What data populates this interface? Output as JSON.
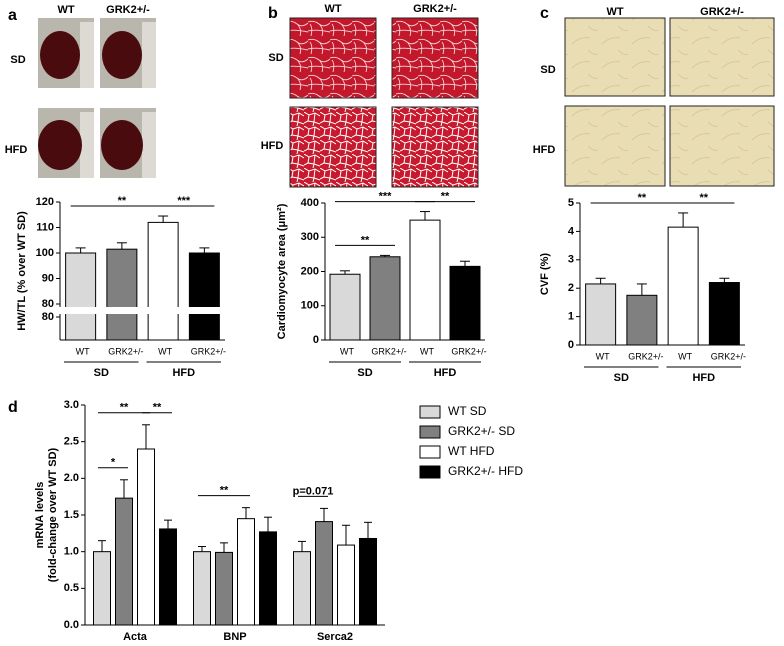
{
  "chart_data": [
    {
      "type": "bar",
      "label": "a",
      "column_labels": [
        "WT",
        "GRK2+/-"
      ],
      "row_labels": [
        "SD",
        "HFD"
      ],
      "categories": [
        "WT",
        "GRK2+/-",
        "WT",
        "GRK2+/-"
      ],
      "groups": [
        "SD",
        "HFD"
      ],
      "values": [
        100,
        101.5,
        112,
        100
      ],
      "errors": [
        2,
        2.5,
        2.5,
        2
      ],
      "colors": [
        "#d9d9d9",
        "#808080",
        "#ffffff",
        "#000000"
      ],
      "ylabel": "HW/TL (% over WT SD)",
      "ylim": [
        80,
        120
      ],
      "yticks": [
        80,
        90,
        100,
        110,
        120
      ],
      "break_tick": 80,
      "annotations": [
        {
          "text": "**",
          "from": 0,
          "to": 2
        },
        {
          "text": "***",
          "from": 2,
          "to": 3
        }
      ]
    },
    {
      "type": "bar",
      "label": "b",
      "column_labels": [
        "WT",
        "GRK2+/-"
      ],
      "row_labels": [
        "SD",
        "HFD"
      ],
      "categories": [
        "WT",
        "GRK2+/-",
        "WT",
        "GRK2+/-"
      ],
      "groups": [
        "SD",
        "HFD"
      ],
      "values": [
        192,
        243,
        350,
        215
      ],
      "errors": [
        10,
        4,
        25,
        15
      ],
      "colors": [
        "#d9d9d9",
        "#808080",
        "#ffffff",
        "#000000"
      ],
      "ylabel": "Cardiomyocyte area (μm²)",
      "ylim": [
        0,
        400
      ],
      "yticks": [
        0,
        100,
        200,
        300,
        400
      ],
      "annotations": [
        {
          "text": "**",
          "from": 0,
          "to": 1
        },
        {
          "text": "***",
          "from": 0,
          "to": 2
        },
        {
          "text": "**",
          "from": 2,
          "to": 3
        }
      ]
    },
    {
      "type": "bar",
      "label": "c",
      "column_labels": [
        "WT",
        "GRK2+/-"
      ],
      "row_labels": [
        "SD",
        "HFD"
      ],
      "categories": [
        "WT",
        "GRK2+/-",
        "WT",
        "GRK2+/-"
      ],
      "groups": [
        "SD",
        "HFD"
      ],
      "values": [
        2.15,
        1.75,
        4.15,
        2.2
      ],
      "errors": [
        0.2,
        0.4,
        0.5,
        0.15
      ],
      "colors": [
        "#d9d9d9",
        "#808080",
        "#ffffff",
        "#000000"
      ],
      "ylabel": "CVF (%)",
      "ylim": [
        0,
        5
      ],
      "yticks": [
        0,
        1,
        2,
        3,
        4,
        5
      ],
      "annotations": [
        {
          "text": "**",
          "from": 0,
          "to": 2
        },
        {
          "text": "**",
          "from": 2,
          "to": 3
        }
      ]
    },
    {
      "type": "grouped_bar",
      "label": "d",
      "categories": [
        "Acta",
        "BNP",
        "Serca2"
      ],
      "series": [
        {
          "name": "WT SD",
          "color": "#d9d9d9",
          "values": [
            1,
            1,
            1
          ],
          "errors": [
            0.15,
            0.07,
            0.14
          ]
        },
        {
          "name": "GRK2+/- SD",
          "color": "#808080",
          "values": [
            1.73,
            0.99,
            1.41
          ],
          "errors": [
            0.25,
            0.13,
            0.18
          ]
        },
        {
          "name": "WT HFD",
          "color": "#ffffff",
          "values": [
            2.4,
            1.45,
            1.09
          ],
          "errors": [
            0.33,
            0.15,
            0.27
          ]
        },
        {
          "name": "GRK2+/- HFD",
          "color": "#000000",
          "values": [
            1.31,
            1.27,
            1.18
          ],
          "errors": [
            0.12,
            0.2,
            0.22
          ]
        }
      ],
      "ylabel": [
        "mRNA levels",
        "(fold-change over WT SD)"
      ],
      "ylim": [
        0,
        3
      ],
      "yticks": [
        {
          "value": 0,
          "label": "0.0"
        },
        0.5,
        {
          "value": 1,
          "label": "1.0"
        },
        1.5,
        {
          "value": 2,
          "label": "2.0"
        },
        2.5,
        {
          "value": 3,
          "label": "3.0"
        }
      ],
      "annotations": [
        {
          "text": "*",
          "category": 0,
          "from": 0,
          "to": 1
        },
        {
          "text": "**",
          "category": 0,
          "from": 0,
          "to": 2
        },
        {
          "text": "**",
          "category": 0,
          "from": 2,
          "to": 3
        },
        {
          "text": "**",
          "category": 1,
          "from": 0,
          "to": 2
        },
        {
          "text": "p=0.071",
          "category": 2,
          "from": 0,
          "to": 1
        }
      ]
    }
  ]
}
